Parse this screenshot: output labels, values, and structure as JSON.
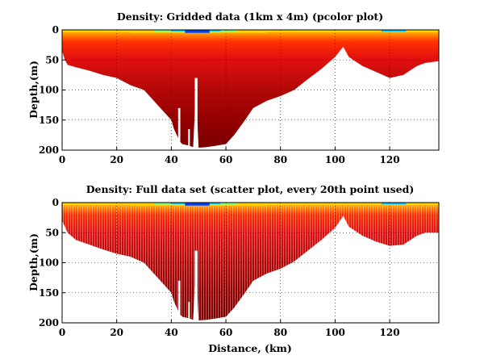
{
  "chart_data": [
    {
      "type": "heatmap",
      "title": "Density: Gridded data (1km x 4m) (pcolor plot)",
      "xlabel": "",
      "ylabel": "Depth,(m)",
      "xlim": [
        0,
        138
      ],
      "ylim": [
        0,
        200
      ],
      "y_reversed": true,
      "grid": true,
      "xticks": [
        0,
        20,
        40,
        60,
        80,
        100,
        120
      ],
      "yticks": [
        0,
        50,
        100,
        150,
        200
      ],
      "xtick_labels": [
        "0",
        "20",
        "40",
        "60",
        "80",
        "100",
        "120"
      ],
      "ytick_labels": [
        "0",
        "50",
        "100",
        "150",
        "200"
      ],
      "bottom_profile": {
        "distance_km": [
          0,
          1,
          2,
          5,
          10,
          15,
          20,
          25,
          30,
          35,
          40,
          41,
          43,
          44,
          46,
          48,
          49,
          50,
          53,
          56,
          60,
          63,
          67,
          70,
          75,
          80,
          85,
          90,
          95,
          100,
          103,
          105,
          110,
          115,
          120,
          125,
          130,
          133,
          138
        ],
        "depth_m": [
          35,
          50,
          58,
          62,
          68,
          75,
          80,
          92,
          100,
          125,
          150,
          165,
          185,
          190,
          192,
          195,
          100,
          196,
          195,
          193,
          190,
          175,
          150,
          130,
          118,
          110,
          100,
          82,
          65,
          45,
          28,
          45,
          60,
          70,
          80,
          75,
          60,
          55,
          52
        ]
      },
      "colormap": "jet",
      "color_note": "surface layer light (blue/cyan/yellow), deep water dark red"
    },
    {
      "type": "scatter",
      "title": "Density: Full data set (scatter plot, every 20th point used)",
      "xlabel": "Distance, (km)",
      "ylabel": "Depth,(m)",
      "xlim": [
        0,
        138
      ],
      "ylim": [
        0,
        200
      ],
      "y_reversed": true,
      "grid": true,
      "xticks": [
        0,
        20,
        40,
        60,
        80,
        100,
        120
      ],
      "yticks": [
        0,
        50,
        100,
        150,
        200
      ],
      "xtick_labels": [
        "0",
        "20",
        "40",
        "60",
        "80",
        "100",
        "120"
      ],
      "ytick_labels": [
        "0",
        "50",
        "100",
        "150",
        "200"
      ],
      "bottom_profile": {
        "distance_km": [
          0,
          1,
          2,
          5,
          10,
          15,
          20,
          25,
          30,
          35,
          40,
          41,
          43,
          44,
          46,
          48,
          49,
          50,
          53,
          56,
          60,
          63,
          67,
          70,
          75,
          80,
          85,
          90,
          95,
          100,
          103,
          105,
          110,
          115,
          120,
          125,
          130,
          133,
          138
        ],
        "depth_m": [
          30,
          40,
          50,
          62,
          70,
          78,
          85,
          90,
          100,
          125,
          150,
          165,
          185,
          190,
          192,
          195,
          100,
          196,
          195,
          193,
          190,
          175,
          150,
          130,
          118,
          110,
          98,
          80,
          62,
          42,
          22,
          40,
          55,
          65,
          72,
          70,
          55,
          50,
          50
        ]
      },
      "colormap": "jet",
      "color_note": "surface layer light (blue/cyan/yellow), deep water dark red"
    }
  ],
  "colors": {
    "deep": "#8b0000",
    "mid": "#d01010",
    "upper": "#ff4000",
    "surface_warm": "#ffd400",
    "surface_cool": "#00c8ff",
    "surface_cold": "#0040ff"
  }
}
